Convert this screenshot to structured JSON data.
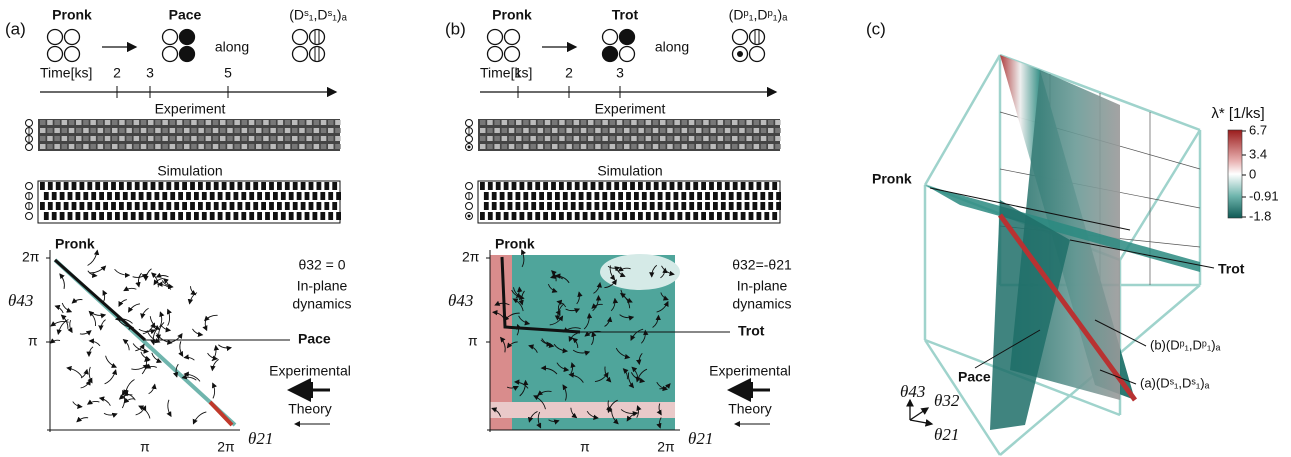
{
  "panel_a": {
    "label": "(a)",
    "from": "Pronk",
    "to": "Pace",
    "along": "along",
    "mode": "(Dˢ₁,Dˢ₁)ₐ",
    "time_label": "Time[ks]",
    "time_ticks": [
      "2",
      "3",
      "5"
    ],
    "experiment": "Experiment",
    "simulation": "Simulation",
    "plot_title": "Pronk",
    "y_ticks": [
      "2π",
      "π"
    ],
    "y_label": "θ43",
    "x_ticks": [
      "π",
      "2π"
    ],
    "x_label": "θ21",
    "condition": "θ32 = 0",
    "desc1": "In-plane",
    "desc2": "dynamics",
    "point": "Pace",
    "legend_exp": "Experimental",
    "legend_theory": "Theory"
  },
  "panel_b": {
    "label": "(b)",
    "from": "Pronk",
    "to": "Trot",
    "along": "along",
    "mode": "(Dᵖ₁,Dᵖ₁)ₐ",
    "time_label": "Time[ks]",
    "time_ticks": [
      "1",
      "2",
      "3"
    ],
    "experiment": "Experiment",
    "simulation": "Simulation",
    "plot_title": "Pronk",
    "y_ticks": [
      "2π",
      "π"
    ],
    "y_label": "θ43",
    "x_ticks": [
      "π",
      "2π"
    ],
    "x_label": "θ21",
    "condition": "θ32=-θ21",
    "desc1": "In-plane",
    "desc2": "dynamics",
    "point": "Trot",
    "legend_exp": "Experimental",
    "legend_theory": "Theory"
  },
  "panel_c": {
    "label": "(c)",
    "colorbar_label": "λ* [1/ks]",
    "colorbar_ticks": [
      "6.7",
      "3.4",
      "0",
      "-0.91",
      "-1.8"
    ],
    "pronk": "Pronk",
    "trot": "Trot",
    "pace": "Pace",
    "sheet_b": "(b)(Dᵖ₁,Dᵖ₁)ₐ",
    "sheet_a": "(a)(Dˢ₁,Dˢ₁)ₐ",
    "axes": [
      "θ43",
      "θ32",
      "θ21"
    ]
  }
}
